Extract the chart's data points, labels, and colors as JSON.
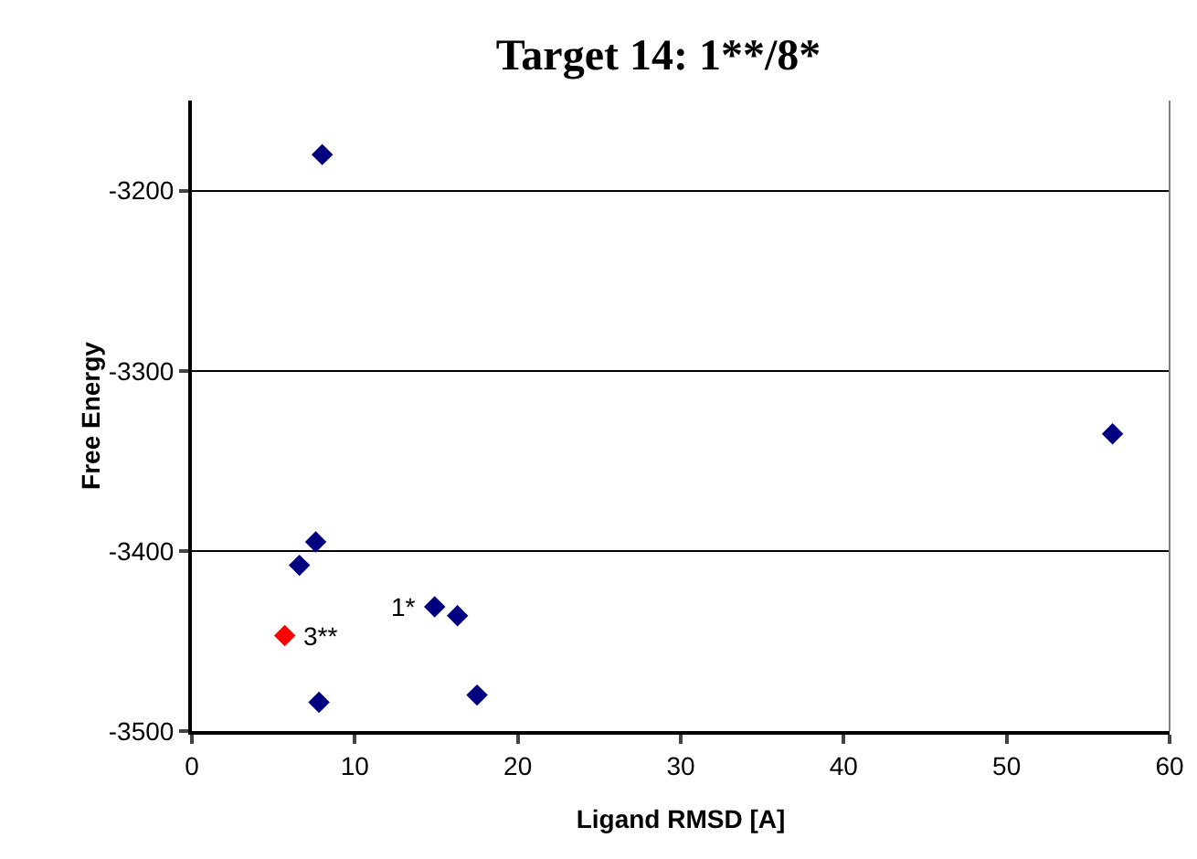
{
  "chart_data": {
    "type": "scatter",
    "title": "Target 14: 1**/8*",
    "xlabel": "Ligand RMSD [A]",
    "ylabel": "Free Energy",
    "series": [
      {
        "color": "#000080",
        "x": [
          8.0,
          56.5,
          7.6,
          6.6,
          14.9,
          16.3,
          7.8,
          17.5
        ],
        "values": [
          -3180,
          -3335,
          -3395,
          -3408,
          -3431,
          -3436,
          -3484,
          -3480
        ]
      },
      {
        "color": "#ff0000",
        "x": [
          5.7
        ],
        "values": [
          -3447
        ]
      }
    ],
    "annotations": [
      {
        "text": "1*",
        "x": 14.9,
        "y": -3431
      },
      {
        "text": "3**",
        "x": 5.7,
        "y": -3447
      }
    ],
    "xlim": [
      0,
      60
    ],
    "xticks": [
      0,
      10,
      20,
      30,
      40,
      50,
      60
    ],
    "ylim": [
      -3500,
      -3150
    ],
    "yticks": [
      -3500,
      -3400,
      -3300,
      -3200
    ],
    "grid": "y",
    "marker": "diamond"
  }
}
